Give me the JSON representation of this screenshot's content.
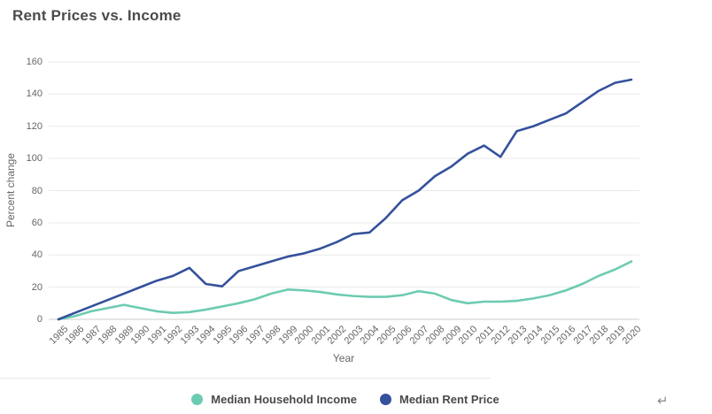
{
  "page": {
    "title": "Rent Prices vs. Income",
    "return_mark": "↵"
  },
  "colors": {
    "income_series": "#6dcbb1",
    "rent_series": "#34519c",
    "gridline": "#e9e9e9",
    "axis_line": "#cccccc",
    "tick_text": "#666666",
    "title_text": "#4b4b4b"
  },
  "chart_data": {
    "type": "line",
    "title": "Rent Prices vs. Income",
    "xlabel": "Year",
    "ylabel": "Percent change",
    "ylim": [
      0,
      160
    ],
    "ytick_step": 20,
    "grid": "horizontal-only",
    "legend_position": "bottom-center",
    "x": [
      1985,
      1986,
      1987,
      1988,
      1989,
      1990,
      1991,
      1992,
      1993,
      1994,
      1995,
      1996,
      1997,
      1998,
      1999,
      2000,
      2001,
      2002,
      2003,
      2004,
      2005,
      2006,
      2007,
      2008,
      2009,
      2010,
      2011,
      2012,
      2013,
      2014,
      2015,
      2016,
      2017,
      2018,
      2019,
      2020
    ],
    "series": [
      {
        "name": "Median Household Income",
        "color": "#6dcbb1",
        "values": [
          0,
          2,
          5,
          7,
          9,
          7,
          5,
          4,
          4.5,
          6,
          8,
          10,
          12.5,
          16,
          18.5,
          18,
          17,
          15.5,
          14.5,
          14,
          14,
          15,
          17.5,
          16,
          12,
          10,
          11,
          11,
          11.5,
          13,
          15,
          18,
          22,
          27,
          31,
          36
        ]
      },
      {
        "name": "Median Rent Price",
        "color": "#34519c",
        "values": [
          0,
          4,
          8,
          12,
          16,
          20,
          24,
          27,
          32,
          22,
          20.5,
          30,
          33,
          36,
          39,
          41,
          44,
          48,
          53,
          54,
          63,
          74,
          80,
          89,
          95,
          103,
          108,
          101,
          117,
          120,
          124,
          128,
          135,
          142,
          147,
          149
        ]
      }
    ]
  }
}
